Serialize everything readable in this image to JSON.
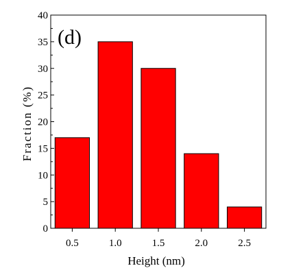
{
  "chart_data": {
    "type": "bar",
    "panel_label": "(d)",
    "xlabel": "Height  (nm)",
    "ylabel": "Fraction  (%)",
    "categories": [
      "0.5",
      "1.0",
      "1.5",
      "2.0",
      "2.5"
    ],
    "values": [
      17,
      35,
      30,
      14,
      4
    ],
    "ylim": [
      0,
      40
    ],
    "yticks": [
      0,
      5,
      10,
      15,
      20,
      25,
      30,
      35,
      40
    ],
    "bar_color": "#ff0000",
    "grid": false,
    "legend": "none"
  }
}
